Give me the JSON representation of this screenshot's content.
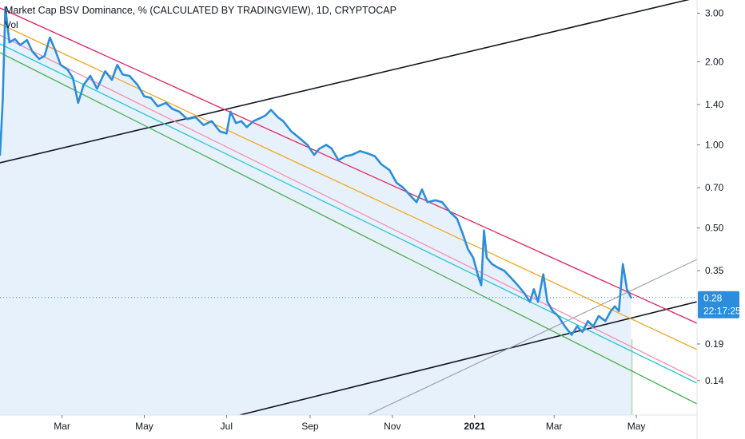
{
  "title": "Market Cap BSV Dominance, % (CALCULATED BY TRADINGVIEW), 1D, CRYPTOCAP",
  "volume_label": "Vol",
  "colors": {
    "price_line": "#2b8ddc",
    "area_fill": "#e7f1fb",
    "trend_black": "#131722",
    "trend_red": "#e0245e",
    "trend_orange": "#f5a623",
    "trend_pink": "#f48fb1",
    "trend_cyan": "#26c6da",
    "trend_green": "#4caf50",
    "trend_gray": "#a0a4ab",
    "volume_up": "#a5d6a7",
    "volume_down": "#ef9a9a",
    "last_price_badge": "#2b8ddc"
  },
  "chart_data": {
    "type": "line",
    "title": "Market Cap BSV Dominance, % (CALCULATED BY TRADINGVIEW), 1D, CRYPTOCAP",
    "y_scale": "log",
    "ylim": [
      0.105,
      3.35
    ],
    "y_ticks": [
      {
        "value": 3.0,
        "label": "3.00"
      },
      {
        "value": 2.0,
        "label": "2.00"
      },
      {
        "value": 1.4,
        "label": "1.40"
      },
      {
        "value": 1.0,
        "label": "1.00"
      },
      {
        "value": 0.7,
        "label": "0.70"
      },
      {
        "value": 0.5,
        "label": "0.50"
      },
      {
        "value": 0.35,
        "label": "0.35"
      },
      {
        "value": 0.19,
        "label": "0.19"
      },
      {
        "value": 0.14,
        "label": "0.14"
      }
    ],
    "xlim": [
      "2020-01-15",
      "2021-06-15"
    ],
    "x_ticks": [
      {
        "date": "2020-03-01",
        "label": "Mar",
        "bold": false
      },
      {
        "date": "2020-05-01",
        "label": "May",
        "bold": false
      },
      {
        "date": "2020-07-01",
        "label": "Jul",
        "bold": false
      },
      {
        "date": "2020-09-01",
        "label": "Sep",
        "bold": false
      },
      {
        "date": "2020-11-01",
        "label": "Nov",
        "bold": false
      },
      {
        "date": "2021-01-01",
        "label": "2021",
        "bold": true
      },
      {
        "date": "2021-03-01",
        "label": "Mar",
        "bold": false
      },
      {
        "date": "2021-05-01",
        "label": "May",
        "bold": false
      }
    ],
    "last_value": {
      "label": "0.28",
      "value": 0.28,
      "countdown": "22:17:25"
    },
    "series": [
      {
        "values": [
          [
            "2020-01-15",
            0.92
          ],
          [
            "2020-01-17",
            1.45
          ],
          [
            "2020-01-19",
            3.15
          ],
          [
            "2020-01-22",
            2.35
          ],
          [
            "2020-01-26",
            2.42
          ],
          [
            "2020-01-30",
            2.3
          ],
          [
            "2020-02-04",
            2.4
          ],
          [
            "2020-02-08",
            2.18
          ],
          [
            "2020-02-13",
            2.05
          ],
          [
            "2020-02-17",
            2.1
          ],
          [
            "2020-02-21",
            2.45
          ],
          [
            "2020-02-25",
            2.2
          ],
          [
            "2020-02-29",
            1.95
          ],
          [
            "2020-03-05",
            1.88
          ],
          [
            "2020-03-09",
            1.75
          ],
          [
            "2020-03-13",
            1.42
          ],
          [
            "2020-03-17",
            1.65
          ],
          [
            "2020-03-22",
            1.78
          ],
          [
            "2020-03-27",
            1.6
          ],
          [
            "2020-04-02",
            1.85
          ],
          [
            "2020-04-07",
            1.72
          ],
          [
            "2020-04-11",
            1.95
          ],
          [
            "2020-04-15",
            1.8
          ],
          [
            "2020-04-20",
            1.78
          ],
          [
            "2020-04-26",
            1.65
          ],
          [
            "2020-05-01",
            1.5
          ],
          [
            "2020-05-06",
            1.48
          ],
          [
            "2020-05-11",
            1.38
          ],
          [
            "2020-05-17",
            1.42
          ],
          [
            "2020-05-22",
            1.35
          ],
          [
            "2020-05-27",
            1.32
          ],
          [
            "2020-06-02",
            1.24
          ],
          [
            "2020-06-08",
            1.26
          ],
          [
            "2020-06-14",
            1.18
          ],
          [
            "2020-06-20",
            1.22
          ],
          [
            "2020-06-26",
            1.12
          ],
          [
            "2020-07-01",
            1.1
          ],
          [
            "2020-07-04",
            1.32
          ],
          [
            "2020-07-08",
            1.2
          ],
          [
            "2020-07-12",
            1.22
          ],
          [
            "2020-07-16",
            1.16
          ],
          [
            "2020-07-21",
            1.22
          ],
          [
            "2020-07-26",
            1.25
          ],
          [
            "2020-07-30",
            1.28
          ],
          [
            "2020-08-03",
            1.34
          ],
          [
            "2020-08-08",
            1.26
          ],
          [
            "2020-08-12",
            1.22
          ],
          [
            "2020-08-18",
            1.12
          ],
          [
            "2020-08-24",
            1.06
          ],
          [
            "2020-08-30",
            1.0
          ],
          [
            "2020-09-04",
            0.92
          ],
          [
            "2020-09-08",
            0.97
          ],
          [
            "2020-09-13",
            1.0
          ],
          [
            "2020-09-17",
            0.97
          ],
          [
            "2020-09-22",
            0.88
          ],
          [
            "2020-09-27",
            0.91
          ],
          [
            "2020-10-02",
            0.92
          ],
          [
            "2020-10-08",
            0.95
          ],
          [
            "2020-10-14",
            0.93
          ],
          [
            "2020-10-19",
            0.91
          ],
          [
            "2020-10-24",
            0.85
          ],
          [
            "2020-10-30",
            0.81
          ],
          [
            "2020-11-04",
            0.73
          ],
          [
            "2020-11-09",
            0.7
          ],
          [
            "2020-11-15",
            0.65
          ],
          [
            "2020-11-19",
            0.62
          ],
          [
            "2020-11-23",
            0.69
          ],
          [
            "2020-11-27",
            0.62
          ],
          [
            "2020-12-03",
            0.63
          ],
          [
            "2020-12-08",
            0.62
          ],
          [
            "2020-12-14",
            0.57
          ],
          [
            "2020-12-19",
            0.54
          ],
          [
            "2020-12-23",
            0.48
          ],
          [
            "2020-12-27",
            0.42
          ],
          [
            "2020-12-31",
            0.39
          ],
          [
            "2021-01-04",
            0.33
          ],
          [
            "2021-01-06",
            0.31
          ],
          [
            "2021-01-08",
            0.49
          ],
          [
            "2021-01-10",
            0.39
          ],
          [
            "2021-01-14",
            0.37
          ],
          [
            "2021-01-18",
            0.36
          ],
          [
            "2021-01-23",
            0.35
          ],
          [
            "2021-01-28",
            0.33
          ],
          [
            "2021-02-02",
            0.31
          ],
          [
            "2021-02-07",
            0.29
          ],
          [
            "2021-02-11",
            0.27
          ],
          [
            "2021-02-14",
            0.3
          ],
          [
            "2021-02-17",
            0.27
          ],
          [
            "2021-02-21",
            0.34
          ],
          [
            "2021-02-24",
            0.27
          ],
          [
            "2021-02-28",
            0.25
          ],
          [
            "2021-03-04",
            0.24
          ],
          [
            "2021-03-09",
            0.22
          ],
          [
            "2021-03-14",
            0.205
          ],
          [
            "2021-03-18",
            0.22
          ],
          [
            "2021-03-22",
            0.21
          ],
          [
            "2021-03-26",
            0.23
          ],
          [
            "2021-03-30",
            0.22
          ],
          [
            "2021-04-03",
            0.24
          ],
          [
            "2021-04-08",
            0.23
          ],
          [
            "2021-04-12",
            0.25
          ],
          [
            "2021-04-15",
            0.26
          ],
          [
            "2021-04-18",
            0.25
          ],
          [
            "2021-04-21",
            0.37
          ],
          [
            "2021-04-24",
            0.3
          ],
          [
            "2021-04-27",
            0.28
          ]
        ]
      }
    ]
  }
}
